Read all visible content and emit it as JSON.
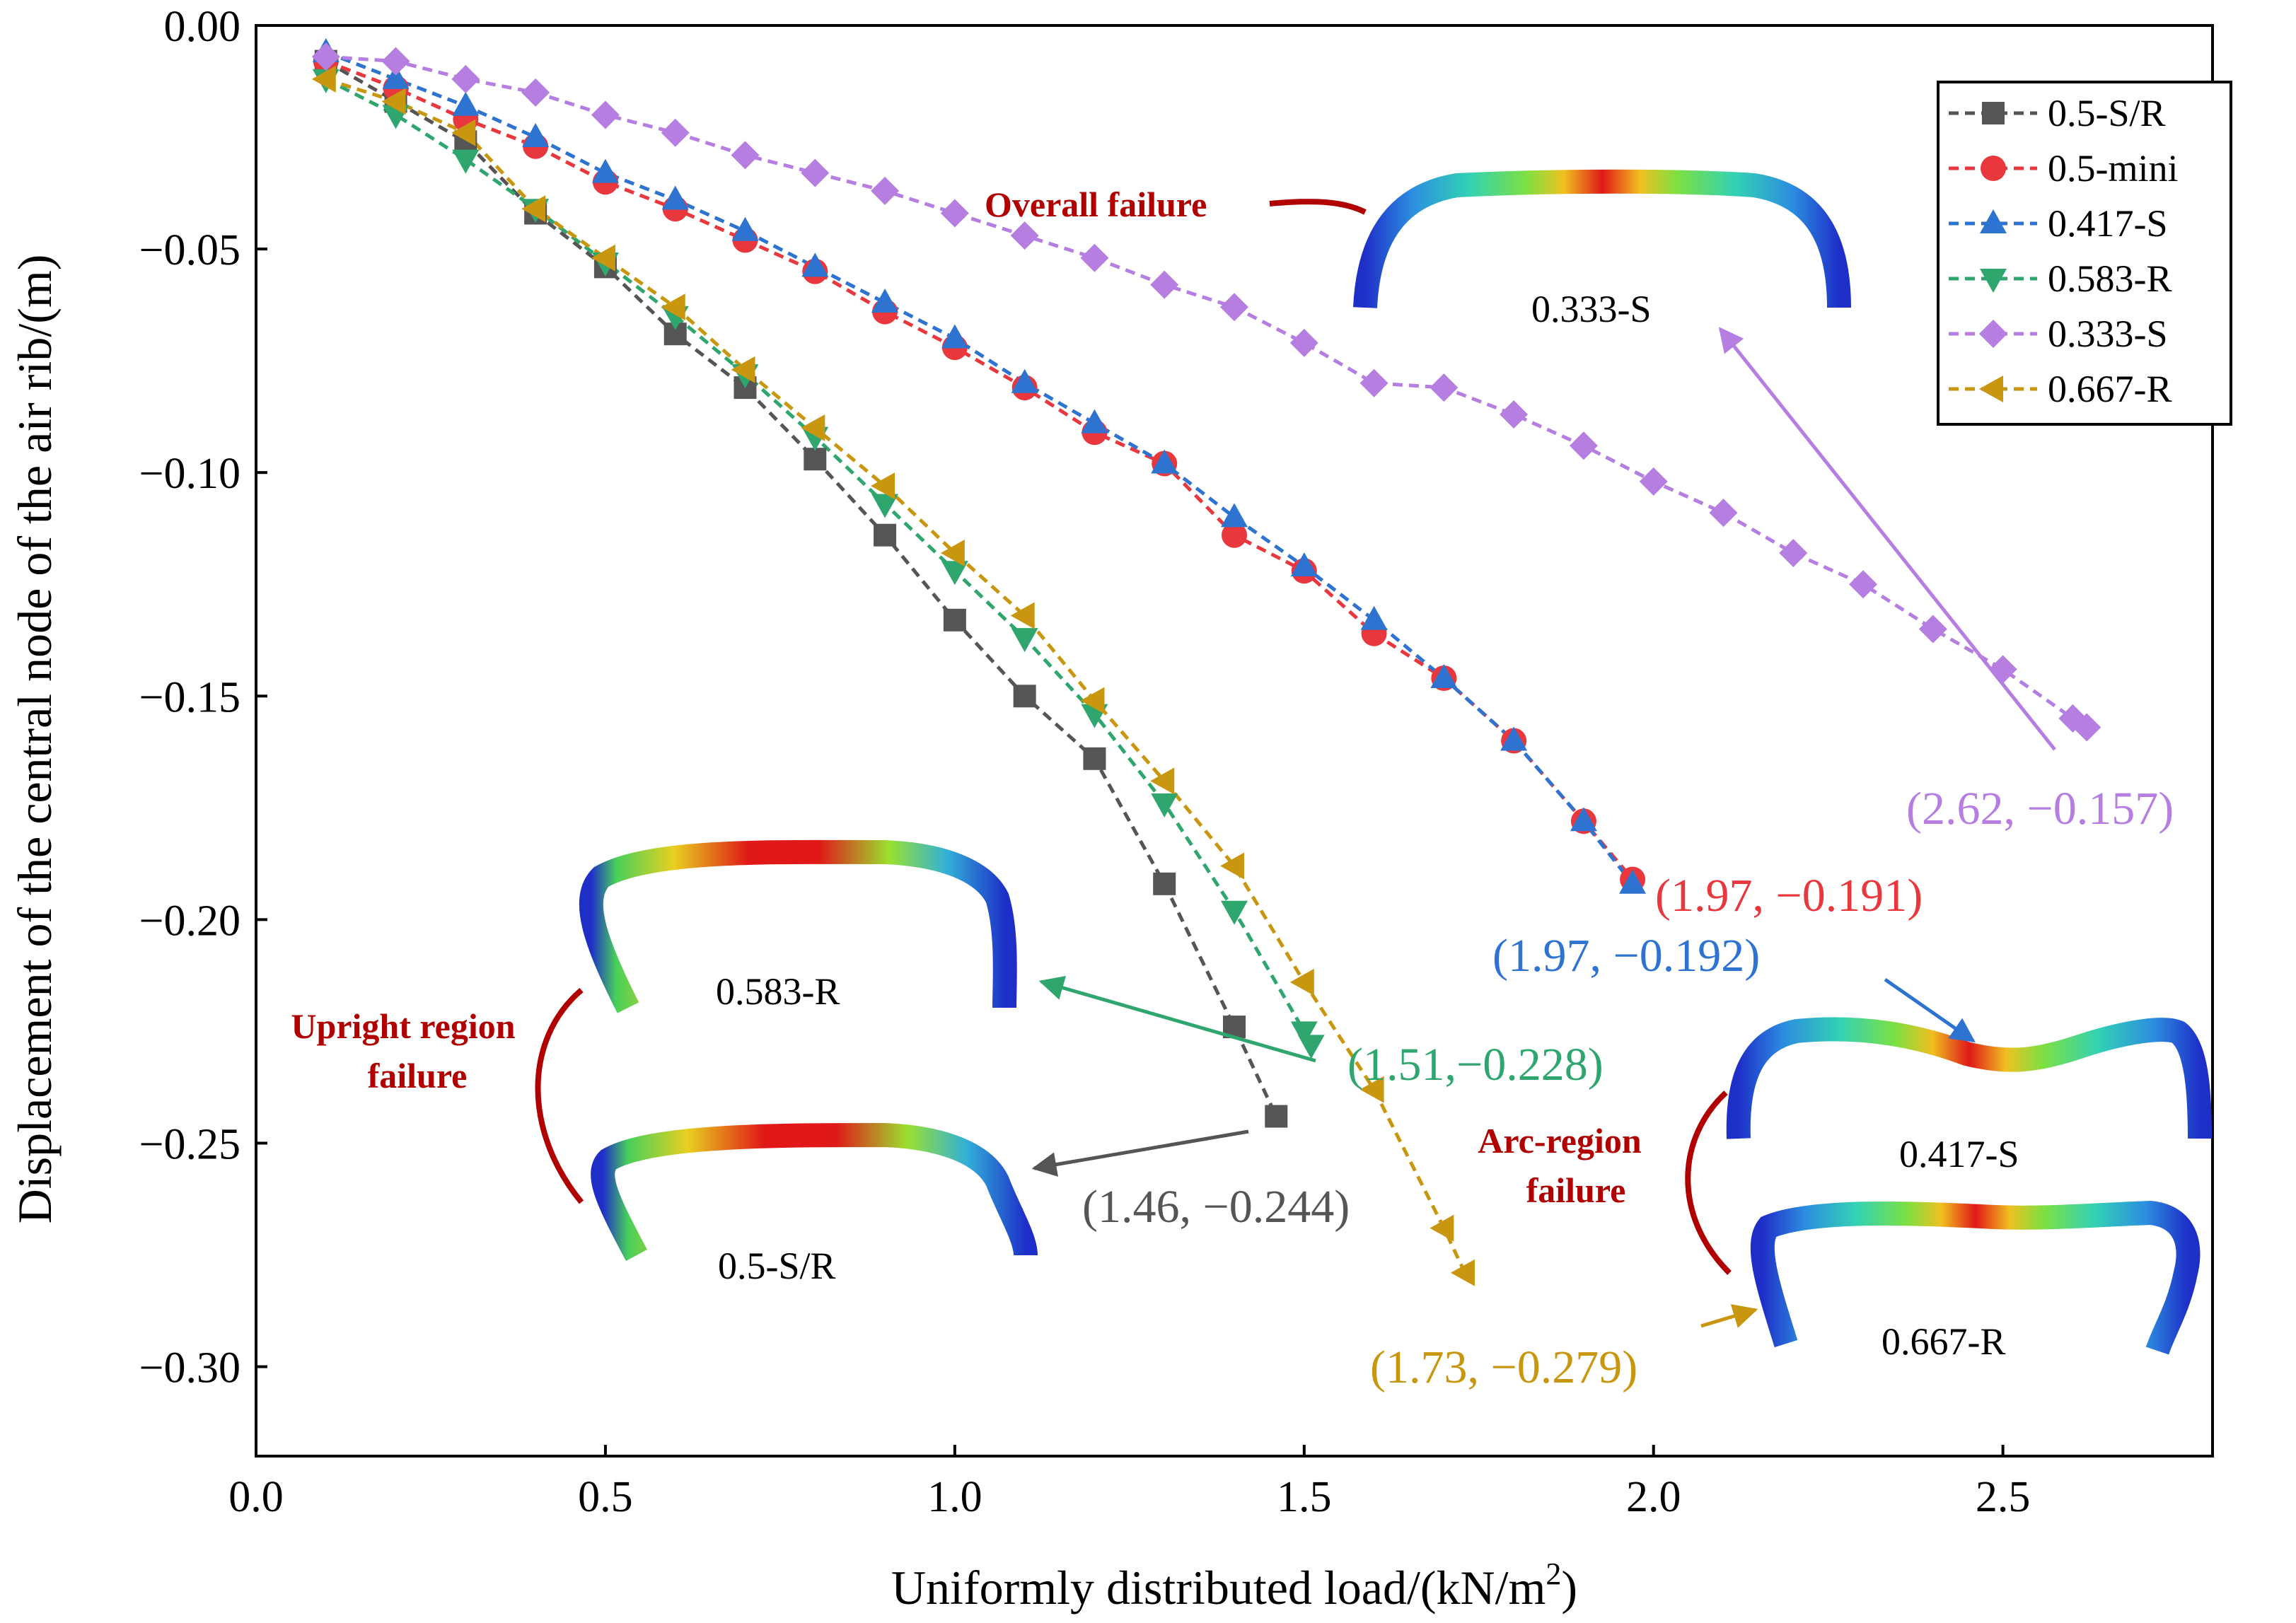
{
  "chart_data": {
    "type": "line",
    "title": "",
    "xlabel": "Uniformly distributed load/(kN/m",
    "xlabel_sup": "2",
    "xlabel_end": ")",
    "ylabel": "Displacement of the central node of the air rib/(m)",
    "xlim": [
      0.0,
      2.8
    ],
    "ylim": [
      -0.32,
      0.0
    ],
    "xticks": [
      "0.0",
      "0.5",
      "1.0",
      "1.5",
      "2.0",
      "2.5"
    ],
    "xtick_values": [
      0.0,
      0.5,
      1.0,
      1.5,
      2.0,
      2.5
    ],
    "yticks": [
      "0.00",
      "−0.05",
      "−0.10",
      "−0.15",
      "−0.20",
      "−0.25",
      "−0.30"
    ],
    "ytick_values": [
      0.0,
      -0.05,
      -0.1,
      -0.15,
      -0.2,
      -0.25,
      -0.3
    ],
    "legend_position": "top-right",
    "series": [
      {
        "name": "0.5-S/R",
        "color": "#555555",
        "marker": "square",
        "x": [
          0.1,
          0.2,
          0.3,
          0.4,
          0.5,
          0.6,
          0.7,
          0.8,
          0.9,
          1.0,
          1.1,
          1.2,
          1.3,
          1.4,
          1.46
        ],
        "y": [
          -0.008,
          -0.017,
          -0.026,
          -0.042,
          -0.054,
          -0.069,
          -0.081,
          -0.097,
          -0.114,
          -0.133,
          -0.15,
          -0.164,
          -0.192,
          -0.224,
          -0.244
        ]
      },
      {
        "name": "0.5-mini",
        "color": "#e8383d",
        "marker": "circle",
        "x": [
          0.1,
          0.2,
          0.3,
          0.4,
          0.5,
          0.6,
          0.7,
          0.8,
          0.9,
          1.0,
          1.1,
          1.2,
          1.3,
          1.4,
          1.5,
          1.6,
          1.7,
          1.8,
          1.9,
          1.97
        ],
        "y": [
          -0.008,
          -0.014,
          -0.021,
          -0.027,
          -0.035,
          -0.041,
          -0.048,
          -0.055,
          -0.064,
          -0.072,
          -0.081,
          -0.091,
          -0.098,
          -0.114,
          -0.122,
          -0.136,
          -0.146,
          -0.16,
          -0.178,
          -0.191
        ]
      },
      {
        "name": "0.417-S",
        "color": "#2f73d0",
        "marker": "triangle-up",
        "x": [
          0.1,
          0.2,
          0.3,
          0.4,
          0.5,
          0.6,
          0.7,
          0.8,
          0.9,
          1.0,
          1.1,
          1.2,
          1.3,
          1.4,
          1.5,
          1.6,
          1.7,
          1.8,
          1.9,
          1.97
        ],
        "y": [
          -0.006,
          -0.012,
          -0.018,
          -0.025,
          -0.033,
          -0.039,
          -0.046,
          -0.054,
          -0.062,
          -0.07,
          -0.08,
          -0.089,
          -0.098,
          -0.11,
          -0.121,
          -0.133,
          -0.146,
          -0.16,
          -0.178,
          -0.192
        ]
      },
      {
        "name": "0.583-R",
        "color": "#2ea66e",
        "marker": "triangle-down",
        "x": [
          0.1,
          0.2,
          0.3,
          0.4,
          0.5,
          0.6,
          0.7,
          0.8,
          0.9,
          1.0,
          1.1,
          1.2,
          1.3,
          1.4,
          1.5,
          1.51
        ],
        "y": [
          -0.012,
          -0.02,
          -0.03,
          -0.041,
          -0.053,
          -0.065,
          -0.078,
          -0.092,
          -0.107,
          -0.122,
          -0.137,
          -0.154,
          -0.174,
          -0.198,
          -0.225,
          -0.228
        ]
      },
      {
        "name": "0.333-S",
        "color": "#b57ee0",
        "marker": "diamond",
        "x": [
          0.1,
          0.2,
          0.3,
          0.4,
          0.5,
          0.6,
          0.7,
          0.8,
          0.9,
          1.0,
          1.1,
          1.2,
          1.3,
          1.4,
          1.5,
          1.6,
          1.7,
          1.8,
          1.9,
          2.0,
          2.1,
          2.2,
          2.3,
          2.4,
          2.5,
          2.6,
          2.62
        ],
        "y": [
          -0.007,
          -0.008,
          -0.012,
          -0.015,
          -0.02,
          -0.024,
          -0.029,
          -0.033,
          -0.037,
          -0.042,
          -0.047,
          -0.052,
          -0.058,
          -0.063,
          -0.071,
          -0.08,
          -0.081,
          -0.087,
          -0.094,
          -0.102,
          -0.109,
          -0.118,
          -0.125,
          -0.135,
          -0.144,
          -0.155,
          -0.157
        ]
      },
      {
        "name": "0.667-R",
        "color": "#c9960f",
        "marker": "triangle-left",
        "x": [
          0.1,
          0.2,
          0.3,
          0.4,
          0.5,
          0.6,
          0.7,
          0.8,
          0.9,
          1.0,
          1.1,
          1.2,
          1.3,
          1.4,
          1.5,
          1.6,
          1.7,
          1.73
        ],
        "y": [
          -0.012,
          -0.017,
          -0.024,
          -0.041,
          -0.052,
          -0.063,
          -0.077,
          -0.09,
          -0.103,
          -0.118,
          -0.132,
          -0.151,
          -0.169,
          -0.188,
          -0.214,
          -0.238,
          -0.269,
          -0.279
        ]
      }
    ],
    "annotations": [
      {
        "text": "(2.62, −0.157)",
        "color": "#b57ee0"
      },
      {
        "text": "(1.97, −0.191)",
        "color": "#e8383d"
      },
      {
        "text": "(1.97, −0.192)",
        "color": "#2f73d0"
      },
      {
        "text": "(1.51,−0.228)",
        "color": "#2ea66e"
      },
      {
        "text": "(1.46, −0.244)",
        "color": "#555555"
      },
      {
        "text": "(1.73, −0.279)",
        "color": "#c9960f"
      }
    ],
    "failure_labels": {
      "overall": "Overall failure",
      "upright_line1": "Upright region",
      "upright_line2": "failure",
      "arc_line1": "Arc-region",
      "arc_line2": "failure"
    },
    "shape_labels": {
      "s333": "0.333-S",
      "r583": "0.583-R",
      "sr5": "0.5-S/R",
      "s417": "0.417-S",
      "r667": "0.667-R"
    }
  }
}
